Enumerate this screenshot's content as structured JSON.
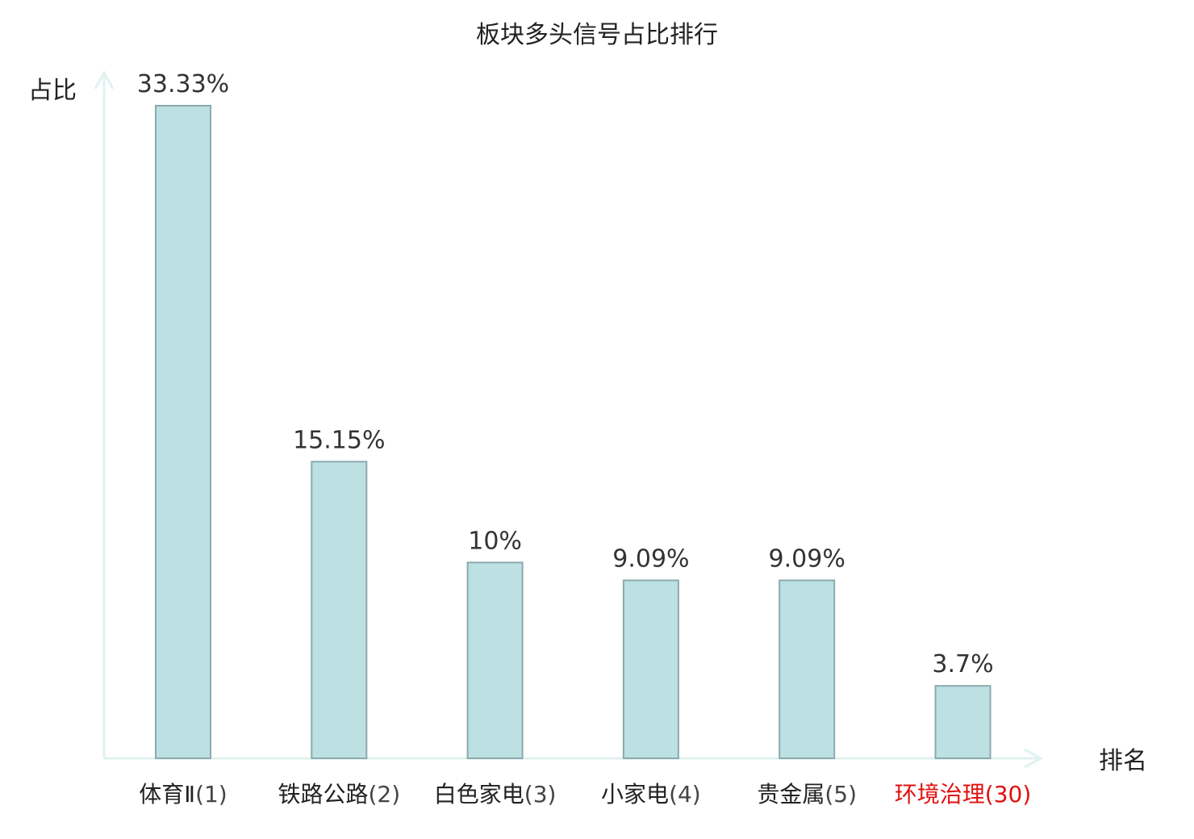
{
  "chart_data": {
    "type": "bar",
    "title": "板块多头信号占比排行",
    "ylabel": "占比",
    "xlabel": "排名",
    "ylim": [
      0,
      35
    ],
    "grid": false,
    "categories": [
      "体育Ⅱ(1)",
      "铁路公路(2)",
      "白色家电(3)",
      "小家电(4)",
      "贵金属(5)",
      "环境治理(30)"
    ],
    "category_names": [
      "体育Ⅱ",
      "铁路公路",
      "白色家电",
      "小家电",
      "贵金属",
      "环境治理"
    ],
    "category_ranks": [
      "(1)",
      "(2)",
      "(3)",
      "(4)",
      "(5)",
      "(30)"
    ],
    "values": [
      33.33,
      15.15,
      10,
      9.09,
      9.09,
      3.7
    ],
    "value_labels": [
      "33.33%",
      "15.15%",
      "10%",
      "9.09%",
      "9.09%",
      "3.7%"
    ],
    "highlight": [
      false,
      false,
      false,
      false,
      false,
      true
    ]
  },
  "colors": {
    "bar_fill": "#bde0e3",
    "bar_stroke": "#8aaaab",
    "axis": "#e0f2ef",
    "highlight": "#e01010"
  }
}
